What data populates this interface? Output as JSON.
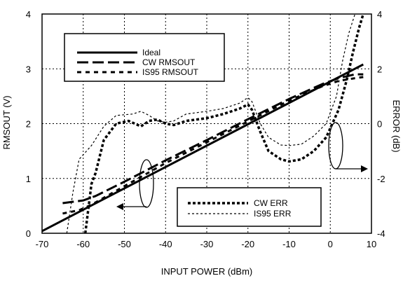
{
  "chart_data": {
    "type": "line",
    "title": "",
    "xlabel": "INPUT POWER (dBm)",
    "ylabel_left": "RMSOUT (V)",
    "ylabel_right": "ERROR (dB)",
    "xlim": [
      -70,
      10
    ],
    "ylim_left": [
      0,
      4
    ],
    "ylim_right": [
      -4,
      4
    ],
    "x_ticks": [
      -70,
      -60,
      -50,
      -40,
      -30,
      -20,
      -10,
      0,
      10
    ],
    "y_ticks_left": [
      0,
      1,
      2,
      3,
      4
    ],
    "y_ticks_right": [
      -4,
      -2,
      0,
      2,
      4
    ],
    "grid": true,
    "x_tick_labels": [
      "-70",
      "-60",
      "-50",
      "-40",
      "-30",
      "-20",
      "-10",
      "0",
      "10"
    ],
    "y_tick_labels_left": [
      "0",
      "1",
      "2",
      "3",
      "4"
    ],
    "y_tick_labels_right": [
      "-4",
      "-2",
      "0",
      "2",
      "4"
    ],
    "legend_top": {
      "position": "top-left",
      "entries": [
        "Ideal",
        "CW RMSOUT",
        "IS95 RMSOUT"
      ]
    },
    "legend_bottom": {
      "position": "bottom-right",
      "entries": [
        "CW ERR",
        "IS95 ERR"
      ]
    },
    "series": [
      {
        "name": "Ideal",
        "axis": "left",
        "style": "solid-thick",
        "points": [
          [
            -70,
            0.04
          ],
          [
            8,
            3.08
          ]
        ]
      },
      {
        "name": "CW RMSOUT",
        "axis": "left",
        "style": "long-dash",
        "points": [
          [
            -65,
            0.55
          ],
          [
            -60,
            0.6
          ],
          [
            -57,
            0.68
          ],
          [
            -50,
            0.94
          ],
          [
            -40,
            1.33
          ],
          [
            -30,
            1.7
          ],
          [
            -20,
            2.08
          ],
          [
            -10,
            2.45
          ],
          [
            -2,
            2.72
          ],
          [
            2,
            2.83
          ],
          [
            6,
            2.9
          ],
          [
            8,
            2.9
          ]
        ]
      },
      {
        "name": "IS95 RMSOUT",
        "axis": "left",
        "style": "short-dash",
        "points": [
          [
            -65,
            0.36
          ],
          [
            -61,
            0.42
          ],
          [
            -58,
            0.52
          ],
          [
            -50,
            0.86
          ],
          [
            -40,
            1.28
          ],
          [
            -30,
            1.66
          ],
          [
            -20,
            2.04
          ],
          [
            -10,
            2.42
          ],
          [
            -2,
            2.68
          ],
          [
            2,
            2.78
          ],
          [
            6,
            2.83
          ],
          [
            8,
            2.85
          ]
        ]
      },
      {
        "name": "CW ERR",
        "axis": "right",
        "style": "thick-dot",
        "points": [
          [
            -59.5,
            -4.0
          ],
          [
            -58,
            -2.2
          ],
          [
            -57,
            -1.8
          ],
          [
            -55,
            -0.6
          ],
          [
            -52,
            0.0
          ],
          [
            -49,
            0.1
          ],
          [
            -46,
            -0.1
          ],
          [
            -44,
            0.1
          ],
          [
            -42,
            0.15
          ],
          [
            -40,
            0.0
          ],
          [
            -38,
            -0.05
          ],
          [
            -35,
            0.1
          ],
          [
            -30,
            0.2
          ],
          [
            -26,
            0.35
          ],
          [
            -22,
            0.55
          ],
          [
            -20,
            0.7
          ],
          [
            -19,
            0.5
          ],
          [
            -17,
            -0.3
          ],
          [
            -15,
            -1.0
          ],
          [
            -12,
            -1.3
          ],
          [
            -10,
            -1.38
          ],
          [
            -7,
            -1.3
          ],
          [
            -4,
            -1.0
          ],
          [
            -1,
            -0.5
          ],
          [
            2,
            0.5
          ],
          [
            4,
            1.6
          ],
          [
            5.5,
            2.6
          ],
          [
            7,
            3.5
          ],
          [
            8,
            4.0
          ]
        ]
      },
      {
        "name": "IS95 ERR",
        "axis": "right",
        "style": "thin-dot",
        "points": [
          [
            -64,
            -4.0
          ],
          [
            -62.5,
            -2.5
          ],
          [
            -61,
            -1.3
          ],
          [
            -58,
            -0.8
          ],
          [
            -55,
            -0.1
          ],
          [
            -52,
            0.3
          ],
          [
            -48,
            0.35
          ],
          [
            -46,
            0.45
          ],
          [
            -44,
            0.3
          ],
          [
            -42,
            0.1
          ],
          [
            -40,
            0.05
          ],
          [
            -38,
            0.1
          ],
          [
            -35,
            0.35
          ],
          [
            -30,
            0.45
          ],
          [
            -26,
            0.55
          ],
          [
            -22,
            0.75
          ],
          [
            -20,
            0.95
          ],
          [
            -19,
            0.8
          ],
          [
            -17,
            0.0
          ],
          [
            -15,
            -0.5
          ],
          [
            -12,
            -0.78
          ],
          [
            -10,
            -0.8
          ],
          [
            -7,
            -0.75
          ],
          [
            -4,
            -0.45
          ],
          [
            -1,
            0.0
          ],
          [
            1.5,
            1.0
          ],
          [
            3,
            2.3
          ],
          [
            4.5,
            3.3
          ],
          [
            6,
            4.0
          ]
        ]
      }
    ],
    "annotations": {
      "left_group_arrow": "points left to RMSOUT axis",
      "right_group_arrow": "points right to ERROR axis"
    }
  }
}
